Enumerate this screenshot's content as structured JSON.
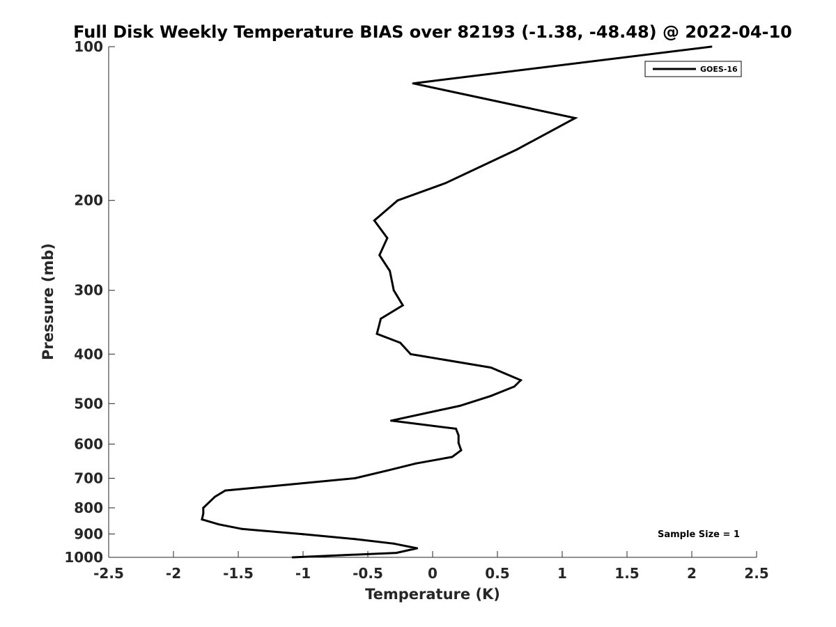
{
  "chart_data": {
    "type": "line",
    "title": "Full Disk Weekly Temperature BIAS over 82193 (-1.38, -48.48) @ 2022-04-10",
    "xlabel": "Temperature (K)",
    "ylabel": "Pressure (mb)",
    "xlim": [
      -2.5,
      2.5
    ],
    "ylim": [
      100,
      1000
    ],
    "yscale": "log",
    "y_reversed": true,
    "x_ticks": [
      -2.5,
      -2,
      -1.5,
      -1,
      -0.5,
      0,
      0.5,
      1,
      1.5,
      2,
      2.5
    ],
    "x_tick_labels": [
      "-2.5",
      "-2",
      "-1.5",
      "-1",
      "-0.5",
      "0",
      "0.5",
      "1",
      "1.5",
      "2",
      "2.5"
    ],
    "y_ticks": [
      100,
      200,
      300,
      400,
      500,
      600,
      700,
      800,
      900,
      1000
    ],
    "y_tick_labels": [
      "100",
      "200",
      "300",
      "400",
      "500",
      "600",
      "700",
      "800",
      "900",
      "1000"
    ],
    "grid": false,
    "legend_position": "top-right",
    "annotation": "Sample Size = 1",
    "series": [
      {
        "name": "GOES-16",
        "color": "#000000",
        "points": [
          {
            "x": 2.15,
            "y": 100
          },
          {
            "x": -0.15,
            "y": 118
          },
          {
            "x": 1.1,
            "y": 138
          },
          {
            "x": 0.65,
            "y": 159
          },
          {
            "x": 0.1,
            "y": 185
          },
          {
            "x": -0.27,
            "y": 200
          },
          {
            "x": -0.45,
            "y": 219
          },
          {
            "x": -0.35,
            "y": 237
          },
          {
            "x": -0.41,
            "y": 256
          },
          {
            "x": -0.33,
            "y": 275
          },
          {
            "x": -0.3,
            "y": 300
          },
          {
            "x": -0.23,
            "y": 321
          },
          {
            "x": -0.4,
            "y": 341
          },
          {
            "x": -0.43,
            "y": 365
          },
          {
            "x": -0.25,
            "y": 380
          },
          {
            "x": -0.17,
            "y": 400
          },
          {
            "x": 0.45,
            "y": 425
          },
          {
            "x": 0.68,
            "y": 450
          },
          {
            "x": 0.63,
            "y": 463
          },
          {
            "x": 0.45,
            "y": 483
          },
          {
            "x": 0.21,
            "y": 505
          },
          {
            "x": -0.32,
            "y": 540
          },
          {
            "x": 0.18,
            "y": 560
          },
          {
            "x": 0.2,
            "y": 577
          },
          {
            "x": 0.2,
            "y": 597
          },
          {
            "x": 0.22,
            "y": 617
          },
          {
            "x": 0.15,
            "y": 636
          },
          {
            "x": -0.13,
            "y": 655
          },
          {
            "x": -0.35,
            "y": 676
          },
          {
            "x": -0.6,
            "y": 700
          },
          {
            "x": -1.1,
            "y": 720
          },
          {
            "x": -1.6,
            "y": 740
          },
          {
            "x": -1.68,
            "y": 761
          },
          {
            "x": -1.77,
            "y": 800
          },
          {
            "x": -1.77,
            "y": 821
          },
          {
            "x": -1.78,
            "y": 843
          },
          {
            "x": -1.65,
            "y": 862
          },
          {
            "x": -1.47,
            "y": 880
          },
          {
            "x": -1.0,
            "y": 901
          },
          {
            "x": -0.6,
            "y": 921
          },
          {
            "x": -0.3,
            "y": 940
          },
          {
            "x": -0.12,
            "y": 960
          },
          {
            "x": -0.28,
            "y": 980
          },
          {
            "x": -1.08,
            "y": 1000
          }
        ]
      }
    ]
  }
}
